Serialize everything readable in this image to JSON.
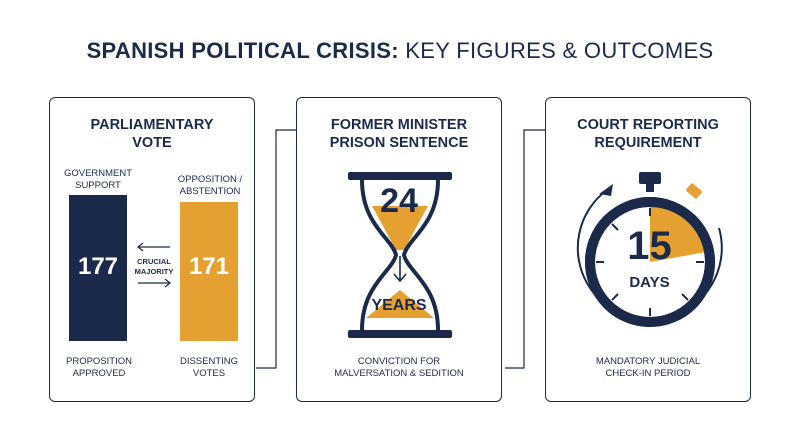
{
  "title": {
    "bold": "SPANISH POLITICAL CRISIS:",
    "rest": "KEY FIGURES & OUTCOMES"
  },
  "colors": {
    "navy": "#1b2a4a",
    "gold": "#e5a032",
    "border": "#1b2a4a"
  },
  "card1": {
    "title_line1": "PARLIAMENTARY",
    "title_line2": "VOTE",
    "left_label_line1": "GOVERNMENT",
    "left_label_line2": "SUPPORT",
    "right_label_line1": "OPPOSITION /",
    "right_label_line2": "ABSTENTION",
    "left_value": "177",
    "right_value": "171",
    "middle_line1": "CRUCIAL",
    "middle_line2": "MAJORITY",
    "left_caption_line1": "PROPOSITION",
    "left_caption_line2": "APPROVED",
    "right_caption_line1": "DISSENTING",
    "right_caption_line2": "VOTES"
  },
  "card2": {
    "title_line1": "FORMER MINISTER",
    "title_line2": "PRISON SENTENCE",
    "number": "24",
    "unit": "YEARS",
    "caption_line1": "CONVICTION FOR",
    "caption_line2": "MALVERSATION & SEDITION"
  },
  "card3": {
    "title_line1": "COURT REPORTING",
    "title_line2": "REQUIREMENT",
    "number": "15",
    "unit": "DAYS",
    "caption_line1": "MANDATORY JUDICIAL",
    "caption_line2": "CHECK-IN PERIOD"
  }
}
